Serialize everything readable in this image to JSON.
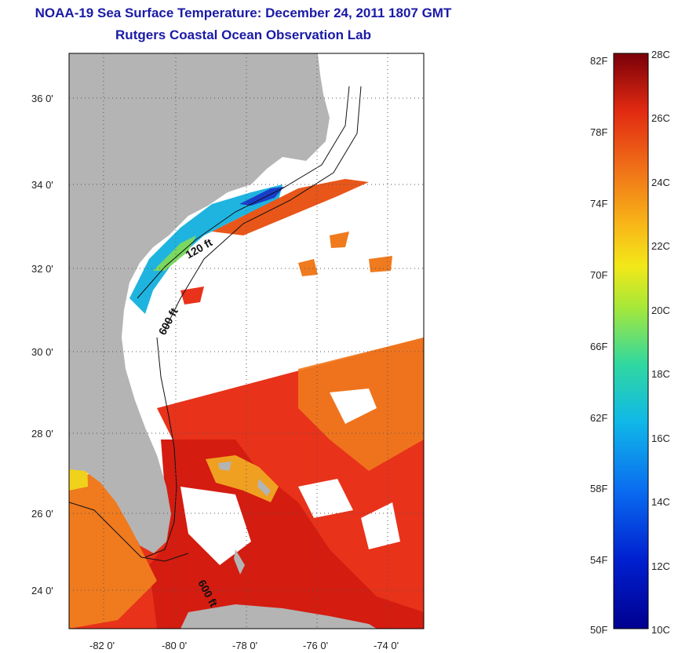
{
  "header": {
    "title": "NOAA-19 Sea Surface Temperature:  December 24, 2011 1807 GMT",
    "subtitle": "Rutgers Coastal Ocean Observation Lab"
  },
  "map": {
    "lat_labels": [
      "36 0'",
      "34 0'",
      "32 0'",
      "30 0'",
      "28 0'",
      "26 0'",
      "24 0'"
    ],
    "lon_labels": [
      "-82 0'",
      "-80 0'",
      "-78 0'",
      "-76 0'",
      "-74 0'"
    ],
    "contour_labels": [
      "120 ft",
      "600 ft",
      "600 ft"
    ],
    "colors": {
      "land": "#b4b4b4",
      "warm": "#e8321a",
      "hot": "#d91a10",
      "orange": "#f07a1e",
      "cool": "#1fb4e0",
      "cold": "#1a3cc8"
    }
  },
  "colorbar": {
    "fahrenheit_labels": [
      "82F",
      "78F",
      "74F",
      "70F",
      "66F",
      "62F",
      "58F",
      "54F",
      "50F"
    ],
    "celsius_labels": [
      "28C",
      "26C",
      "24C",
      "22C",
      "20C",
      "18C",
      "16C",
      "14C",
      "12C",
      "10C"
    ]
  }
}
